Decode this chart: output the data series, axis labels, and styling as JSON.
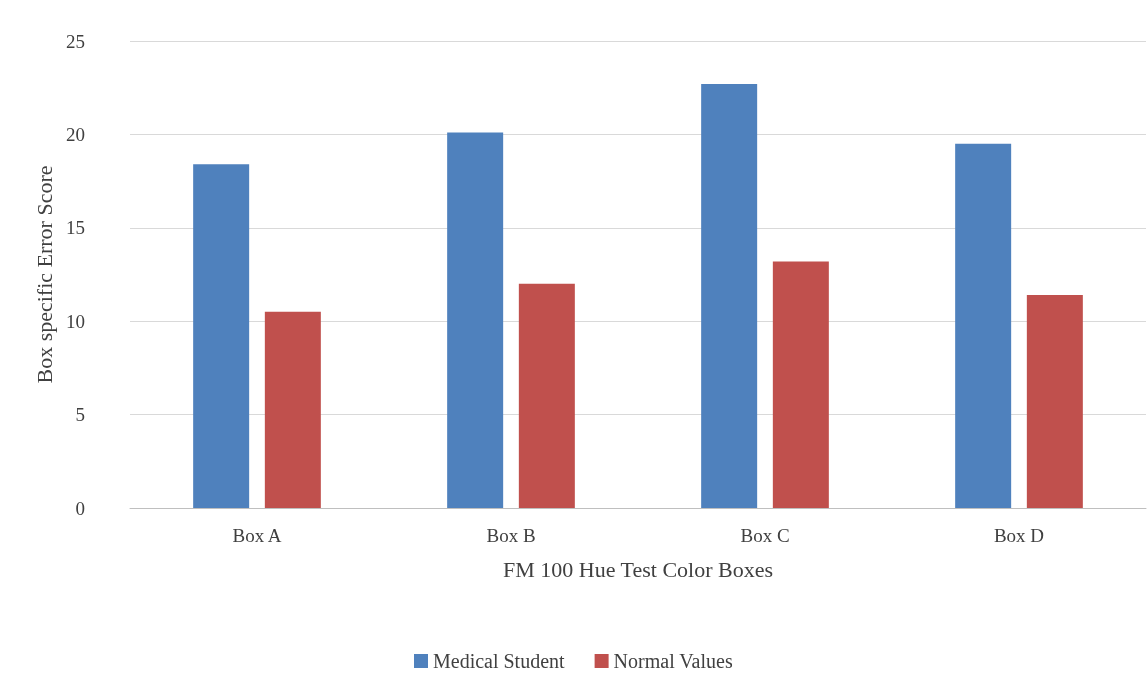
{
  "chart_data": {
    "type": "bar",
    "xlabel": "FM 100 Hue Test Color Boxes",
    "ylabel": "Box specific Error Score",
    "categories": [
      "Box A",
      "Box B",
      "Box C",
      "Box D"
    ],
    "series": [
      {
        "name": "Medical Student",
        "color": "#4f81bd",
        "values": [
          18.4,
          20.1,
          22.7,
          19.5
        ]
      },
      {
        "name": "Normal Values",
        "color": "#c0504d",
        "values": [
          10.5,
          12.0,
          13.2,
          11.4
        ]
      }
    ],
    "ylim": [
      0,
      25
    ],
    "yticks": [
      0,
      5,
      10,
      15,
      20,
      25
    ],
    "grid": "y",
    "legend": "bottom"
  }
}
